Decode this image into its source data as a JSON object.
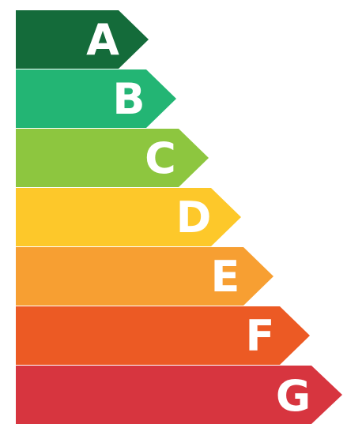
{
  "energy_scale": {
    "bars": [
      {
        "label": "A",
        "color": "#146b3a"
      },
      {
        "label": "B",
        "color": "#23b574"
      },
      {
        "label": "C",
        "color": "#8dc63f"
      },
      {
        "label": "D",
        "color": "#fdc82a"
      },
      {
        "label": "E",
        "color": "#f79f32"
      },
      {
        "label": "F",
        "color": "#ec5a24"
      },
      {
        "label": "G",
        "color": "#d7353f"
      }
    ]
  }
}
